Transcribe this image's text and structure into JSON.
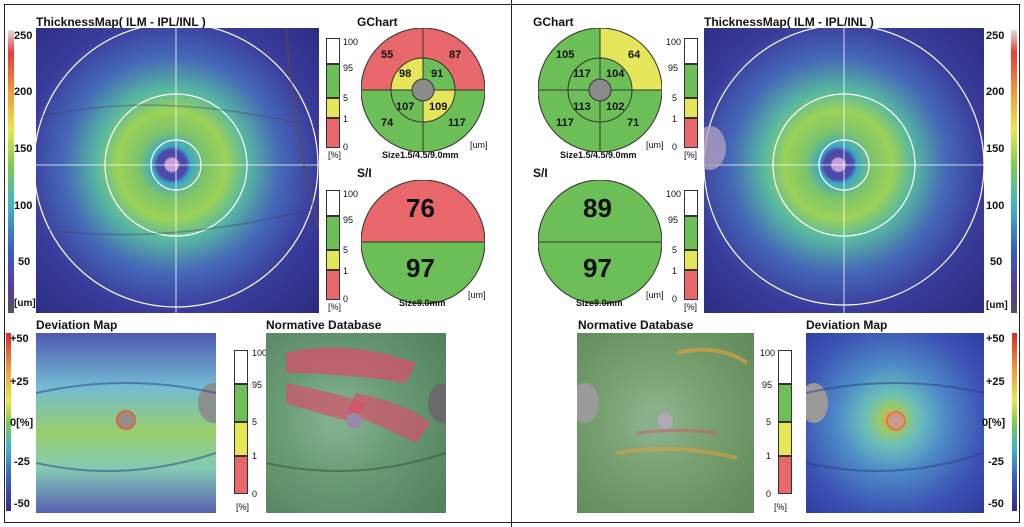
{
  "left": {
    "thickness_title": "ThicknessMap( ILM - IPL/INL )",
    "thickness_scale": [
      "250",
      "200",
      "150",
      "100",
      "50"
    ],
    "thickness_unit": "[um]",
    "gchart_title": "GChart",
    "gchart_scale": [
      "100",
      "95",
      "5",
      "1",
      "0"
    ],
    "gchart_scale_unit": "[%]",
    "gchart_unit": "[um]",
    "gchart_size": "Size1.5/4.5/9.0mm",
    "gchart_values": {
      "outer_top_left": "55",
      "outer_top_right": "87",
      "inner_top_left": "98",
      "inner_top_right": "91",
      "inner_bottom_left": "107",
      "inner_bottom_right": "109",
      "outer_bottom_left": "74",
      "outer_bottom_right": "117"
    },
    "si_title": "S/I",
    "si_scale": [
      "100",
      "95",
      "5",
      "1",
      "0"
    ],
    "si_scale_unit": "[%]",
    "si_superior": "76",
    "si_inferior": "97",
    "si_unit": "[um]",
    "si_size": "Size9.0mm",
    "deviation_title": "Deviation Map",
    "deviation_scale": [
      "+50",
      "+25",
      "0[%]",
      "-25",
      "-50"
    ],
    "normative_title": "Normative Database",
    "normative_scale": [
      "100",
      "95",
      "5",
      "1",
      "0"
    ],
    "normative_unit": "[%]"
  },
  "right": {
    "thickness_title": "ThicknessMap( ILM - IPL/INL )",
    "thickness_scale": [
      "250",
      "200",
      "150",
      "100",
      "50"
    ],
    "thickness_unit": "[um]",
    "gchart_title": "GChart",
    "gchart_scale": [
      "100",
      "95",
      "5",
      "1",
      "0"
    ],
    "gchart_scale_unit": "[%]",
    "gchart_unit": "[um]",
    "gchart_size": "Size1.5/4.5/9.0mm",
    "gchart_values": {
      "outer_top_left": "105",
      "outer_top_right": "64",
      "inner_top_left": "117",
      "inner_top_right": "104",
      "inner_bottom_left": "113",
      "inner_bottom_right": "102",
      "outer_bottom_left": "117",
      "outer_bottom_right": "71"
    },
    "si_title": "S/I",
    "si_scale": [
      "100",
      "95",
      "5",
      "1",
      "0"
    ],
    "si_scale_unit": "[%]",
    "si_superior": "89",
    "si_inferior": "97",
    "si_unit": "[um]",
    "si_size": "Size9.0mm",
    "deviation_title": "Deviation Map",
    "deviation_scale": [
      "+50",
      "+25",
      "0[%]",
      "-25",
      "-50"
    ],
    "normative_title": "Normative Database",
    "normative_scale": [
      "100",
      "95",
      "5",
      "1",
      "0"
    ],
    "normative_unit": "[%]"
  },
  "colors": {
    "red": "#e8676a",
    "yellow": "#e6e65a",
    "green": "#6cbf56",
    "white": "#ffffff"
  }
}
